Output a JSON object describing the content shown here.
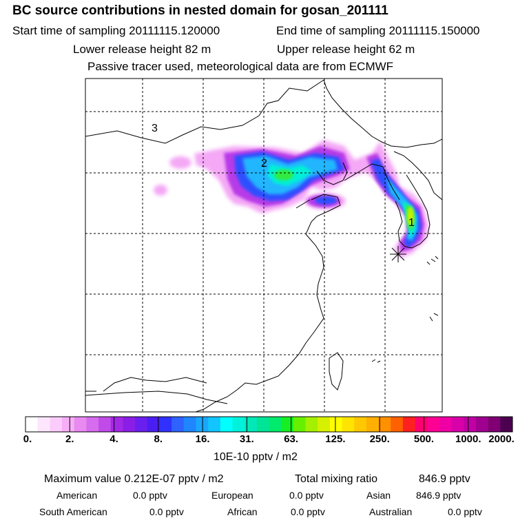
{
  "title": "BC  source contributions in nested domain for gosan_201111",
  "header": {
    "start_label": "Start time of sampling 20111115.120000",
    "end_label": "End time of sampling 20111115.150000",
    "lower_label": "Lower release height   82 m",
    "upper_label": "Upper release height   62 m",
    "tracer_note": "Passive tracer used, meteorological data are from ECMWF"
  },
  "map": {
    "region_labels": [
      "3",
      "2",
      "1"
    ],
    "release_marker": "star-icon",
    "gridlines": "dashed"
  },
  "colorbar": {
    "ticks": [
      "0.",
      "2.",
      "4.",
      "8.",
      "16.",
      "31.",
      "63.",
      "125.",
      "250.",
      "500.",
      "1000.",
      "2000."
    ],
    "units": "10E-10 pptv / m2",
    "colors": [
      "#ffffff",
      "#fde6fd",
      "#fbccfb",
      "#f6aef6",
      "#e88af0",
      "#d66cee",
      "#c14be8",
      "#a328e6",
      "#8a1ee6",
      "#6a1fee",
      "#4a1ef2",
      "#3030ff",
      "#2f62ff",
      "#1f86ff",
      "#19a6ff",
      "#12c4ff",
      "#00ffff",
      "#00f2dc",
      "#00e8b8",
      "#00e498",
      "#00ea6c",
      "#16ee24",
      "#66f000",
      "#a4f000",
      "#d6f000",
      "#ffff00",
      "#ffe400",
      "#ffc800",
      "#ffb000",
      "#ff9000",
      "#ff6000",
      "#ff2020",
      "#ff0070",
      "#ff0094",
      "#f000a4",
      "#d800a8",
      "#c000a4",
      "#a00090",
      "#800074",
      "#4c0050"
    ]
  },
  "stats": {
    "max_label": "Maximum value  0.212E-07 pptv / m2",
    "total_label": "Total mixing ratio",
    "total_value": "846.9 pptv",
    "regions": [
      {
        "name": "American",
        "value": "0.0 pptv"
      },
      {
        "name": "European",
        "value": "0.0 pptv"
      },
      {
        "name": "Asian",
        "value": "846.9 pptv"
      },
      {
        "name": "South American",
        "value": "0.0 pptv"
      },
      {
        "name": "African",
        "value": "0.0 pptv"
      },
      {
        "name": "Australian",
        "value": "0.0 pptv"
      }
    ]
  }
}
